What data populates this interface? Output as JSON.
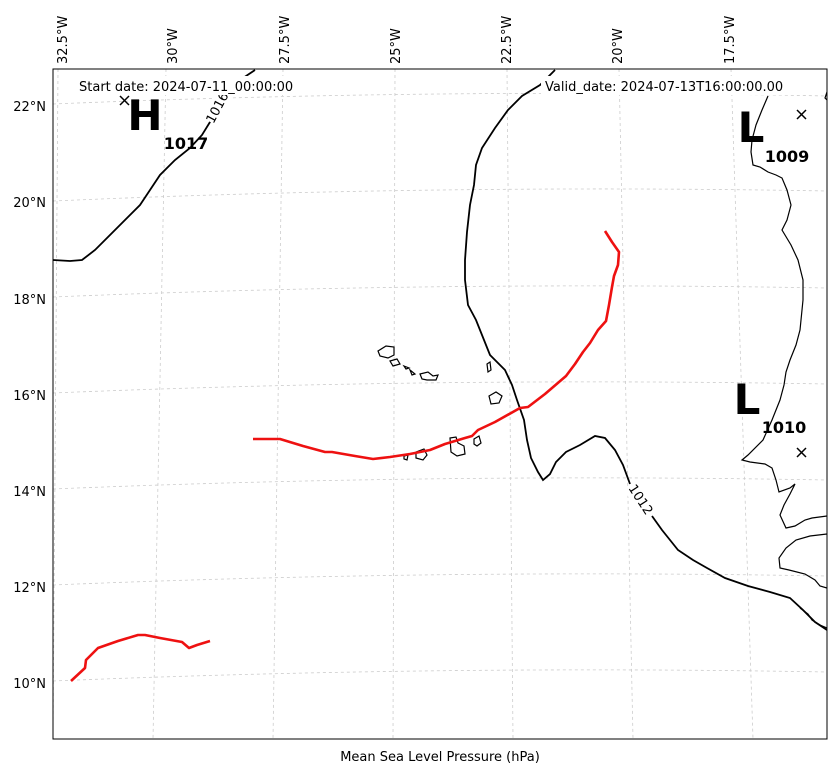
{
  "map": {
    "start_date": "Start date: 2024-07-11_00:00:00",
    "valid_date": "Valid_date: 2024-07-13T16:00:00.00",
    "caption": "Mean Sea Level Pressure (hPa)",
    "lon_ticks": [
      "32.5°W",
      "30°W",
      "27.5°W",
      "25°W",
      "22.5°W",
      "20°W",
      "17.5°W"
    ],
    "lat_ticks": [
      "22°N",
      "20°N",
      "18°N",
      "16°N",
      "14°N",
      "12°N",
      "10°N"
    ],
    "pressure_centers": [
      {
        "type": "H",
        "value": "1017"
      },
      {
        "type": "L",
        "value": "1009"
      },
      {
        "type": "L",
        "value": "1010"
      }
    ],
    "contour_labels": [
      "1016",
      "1012"
    ],
    "colors": {
      "contour": "#000000",
      "track": "#ee1111",
      "grid": "#cccccc"
    }
  }
}
